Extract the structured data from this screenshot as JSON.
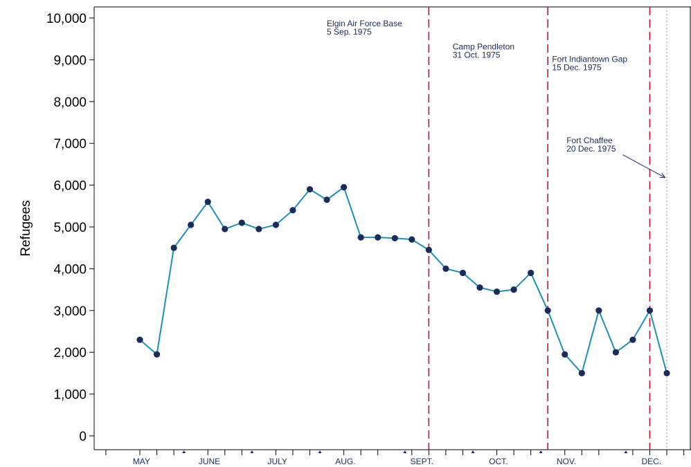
{
  "chart_data": {
    "type": "line",
    "ylabel": "Refugees",
    "xlabel": "",
    "ylim": [
      0,
      10000
    ],
    "yticks": [
      0,
      1000,
      2000,
      3000,
      4000,
      5000,
      6000,
      7000,
      8000,
      9000,
      10000
    ],
    "ytick_labels": [
      "0",
      "1,000",
      "2,000",
      "3,000",
      "4,000",
      "5,000",
      "6,000",
      "7,000",
      "8,000",
      "9,000",
      "10,000"
    ],
    "x_unit": "week",
    "xlim": [
      -3.0,
      33.3
    ],
    "months": [
      {
        "label": "MAY",
        "x": 0.5
      },
      {
        "label": "JUNE",
        "x": 4.5
      },
      {
        "label": "JULY",
        "x": 8.5
      },
      {
        "label": "AUG.",
        "x": 12.5
      },
      {
        "label": "SEPT.",
        "x": 17.0
      },
      {
        "label": "OCT.",
        "x": 21.5
      },
      {
        "label": "NOV.",
        "x": 25.5
      },
      {
        "label": "DEC.",
        "x": 30.5
      }
    ],
    "major_ticks": [
      -2,
      0,
      1,
      2,
      4,
      5,
      6,
      8,
      9,
      10,
      12,
      13,
      14,
      16,
      17,
      18,
      19,
      21,
      22,
      23,
      25,
      26,
      27,
      29,
      30,
      31,
      32,
      33
    ],
    "minor_ticks": [
      3,
      7,
      11,
      16,
      20,
      24,
      29
    ],
    "series": [
      {
        "x": [
          0,
          1,
          2,
          3,
          4,
          5,
          6,
          7,
          8,
          9,
          10,
          11,
          12,
          13,
          14,
          15,
          16,
          17,
          18,
          19,
          20,
          21,
          22,
          23,
          24,
          25,
          26,
          27,
          28,
          29,
          30,
          31,
          32
        ],
        "values": [
          2300,
          1950,
          4500,
          5050,
          5600,
          4950,
          5100,
          4950,
          5050,
          5400,
          5900,
          5650,
          5950,
          4750,
          4750,
          4730,
          4700,
          4450,
          4000,
          3900,
          3550,
          3450,
          3500,
          3900,
          3000,
          1950,
          1500,
          3000,
          2000,
          2300,
          3000,
          1500,
          null
        ]
      }
    ],
    "vlines": [
      {
        "x": 17.0,
        "style": "dashed",
        "color": "#c8102e"
      },
      {
        "x": 24.0,
        "style": "dashed",
        "color": "#c8102e"
      },
      {
        "x": 30.0,
        "style": "dashed",
        "color": "#c8102e"
      },
      {
        "x": 31.0,
        "style": "dotted",
        "color": "#999999"
      }
    ],
    "annotations": [
      {
        "lines": [
          "Elgin Air Force Base",
          "5 Sep. 1975"
        ],
        "x": 11.0,
        "y": 9800
      },
      {
        "lines": [
          "Camp Pendleton",
          "31 Oct. 1975"
        ],
        "x": 18.4,
        "y": 9250
      },
      {
        "lines": [
          "Fort Indiantown Gap",
          "15 Dec. 1975"
        ],
        "x": 24.25,
        "y": 8950
      },
      {
        "lines": [
          "Fort Chaffee",
          "20 Dec. 1975"
        ],
        "x": 25.1,
        "y": 7000
      }
    ],
    "arrow": {
      "from": [
        28.4,
        6730
      ],
      "to": [
        30.9,
        6180
      ]
    },
    "colors": {
      "line": "#1d8fb8",
      "marker": "#1b2b5c",
      "vline": "#c8102e",
      "text": "#1b2b5c"
    },
    "grid": false
  }
}
